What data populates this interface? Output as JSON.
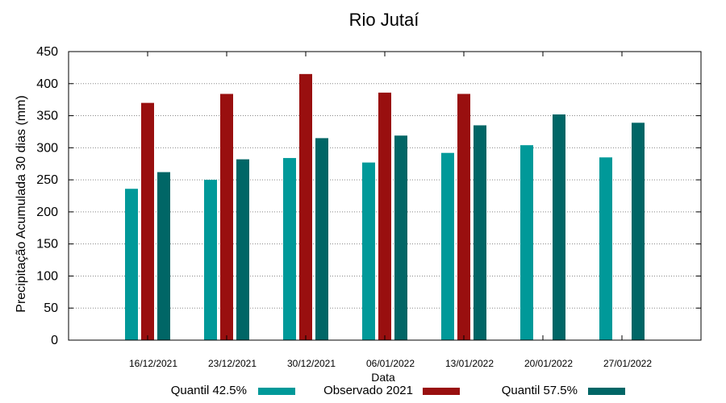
{
  "chart_data": {
    "type": "bar",
    "title": "Rio Jutaí",
    "xlabel": "Data",
    "ylabel": "Precipitação Acumulada 30 dias (mm)",
    "ylim": [
      0,
      450
    ],
    "yticks": [
      0,
      50,
      100,
      150,
      200,
      250,
      300,
      350,
      400,
      450
    ],
    "grid": true,
    "legend_position": "bottom",
    "categories": [
      "16/12/2021",
      "23/12/2021",
      "30/12/2021",
      "06/01/2022",
      "13/01/2022",
      "20/01/2022",
      "27/01/2022"
    ],
    "series": [
      {
        "name": "Quantil 42.5%",
        "color": "#009999",
        "values": [
          236,
          250,
          284,
          277,
          292,
          304,
          285
        ]
      },
      {
        "name": "Observado 2021",
        "color": "#990f0f",
        "values": [
          370,
          384,
          415,
          386,
          384,
          null,
          null
        ]
      },
      {
        "name": "Quantil 57.5%",
        "color": "#006666",
        "values": [
          262,
          282,
          315,
          319,
          335,
          352,
          339
        ]
      }
    ]
  }
}
